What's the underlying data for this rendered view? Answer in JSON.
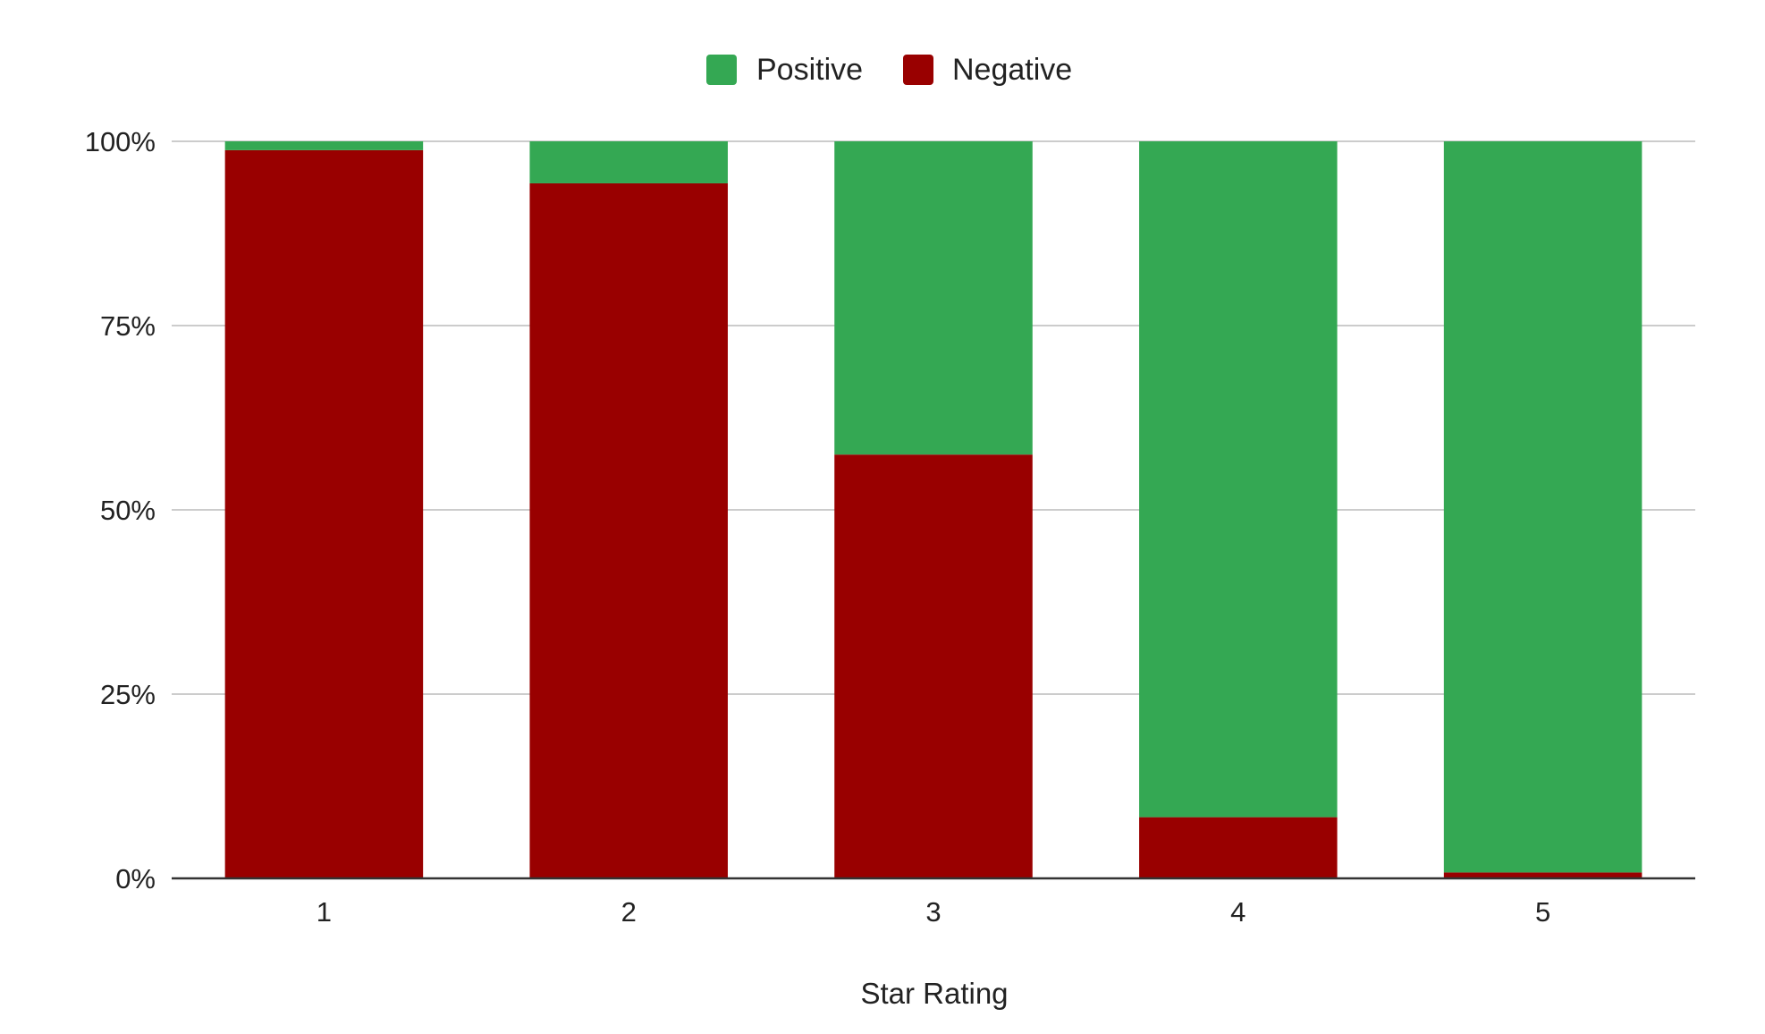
{
  "chart_data": {
    "type": "bar",
    "stacked": true,
    "normalized_percent": true,
    "title": "",
    "xlabel": "Star Rating",
    "ylabel": "",
    "categories": [
      "1",
      "2",
      "3",
      "4",
      "5"
    ],
    "series": [
      {
        "name": "Negative",
        "color": "#990000",
        "values": [
          98.8,
          94.3,
          57.5,
          8.3,
          0.8
        ]
      },
      {
        "name": "Positive",
        "color": "#34a853",
        "values": [
          1.2,
          5.7,
          42.5,
          91.7,
          99.2
        ]
      }
    ],
    "yticks": [
      0,
      25,
      50,
      75,
      100
    ],
    "ytick_labels": [
      "0%",
      "25%",
      "50%",
      "75%",
      "100%"
    ],
    "ylim": [
      0,
      100
    ],
    "grid": true,
    "legend": {
      "position": "top-center",
      "entries": [
        {
          "label": "Positive",
          "color": "#34a853"
        },
        {
          "label": "Negative",
          "color": "#990000"
        }
      ]
    }
  }
}
